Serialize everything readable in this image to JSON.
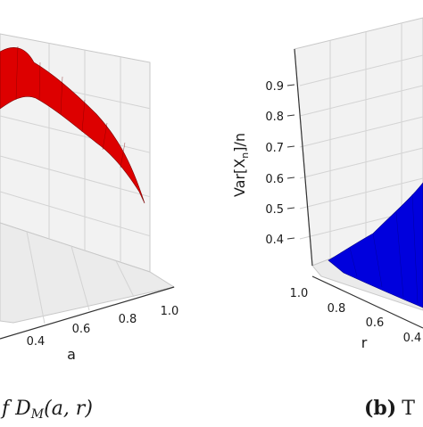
{
  "chart_data": [
    {
      "type": "surface",
      "caption_fragment": "f D",
      "caption_subscript": "M",
      "caption_args": "(a, r)",
      "xlabel": "a",
      "x_ticks": [
        "0.4",
        "0.6",
        "0.8",
        "1.0"
      ],
      "surface_color": "#dd0000",
      "surface_edge": "#7a0000",
      "grid": true
    },
    {
      "type": "surface",
      "caption_label": "(b)",
      "caption_fragment": "T",
      "zlabel": "Var[X",
      "zlabel_sub": "n",
      "zlabel_tail": "]/n",
      "z_ticks": [
        "0.4",
        "0.5",
        "0.6",
        "0.7",
        "0.8",
        "0.9"
      ],
      "xlabel": "r",
      "x_ticks": [
        "1.0",
        "0.8",
        "0.6",
        "0.4"
      ],
      "surface_color": "#0000dd",
      "surface_edge": "#000088",
      "grid": true
    }
  ]
}
